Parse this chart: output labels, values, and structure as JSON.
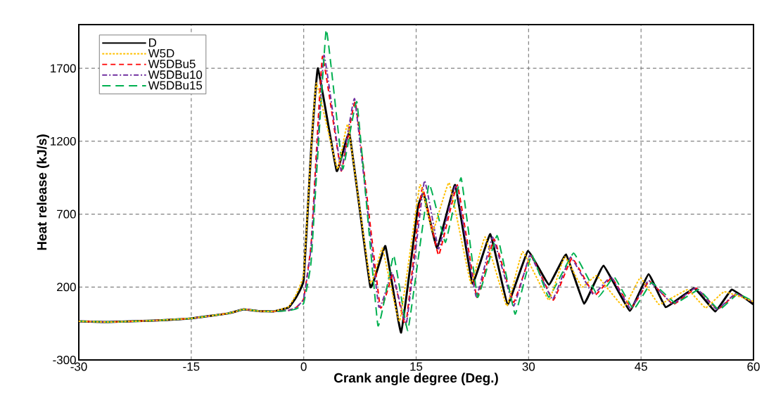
{
  "chart_data": {
    "type": "line",
    "xlabel": "Crank angle degree (Deg.)",
    "ylabel": "Heat release (kJ/s)",
    "xlim": [
      -30,
      60
    ],
    "xticks": [
      -30,
      -15,
      0,
      15,
      30,
      45,
      60
    ],
    "ylim": [
      -300,
      2000
    ],
    "yticks": [
      -300,
      200,
      700,
      1200,
      1700
    ],
    "grid": true,
    "legend": "top left",
    "marker": "none",
    "series": [
      {
        "name": "D",
        "color": "#000000",
        "line_style": "solid",
        "x": [
          -30,
          -26,
          -20,
          -15,
          -10,
          -8,
          -6,
          -4,
          -2,
          -1,
          0,
          1,
          1.9,
          4.4,
          6.1,
          8.9,
          10.9,
          13,
          15.2,
          16,
          17.8,
          20.2,
          22.5,
          24.9,
          27.2,
          29.9,
          32.7,
          35,
          37.4,
          40,
          43.5,
          46,
          48.3,
          52.1,
          54.9,
          57.1,
          60
        ],
        "values": [
          -35,
          -40,
          -30,
          -15,
          20,
          47,
          35,
          33,
          60,
          130,
          250,
          1150,
          1700,
          996,
          1252,
          200,
          481,
          -112,
          737,
          842,
          466,
          900,
          225,
          563,
          81,
          447,
          216,
          423,
          86,
          346,
          37,
          288,
          62,
          192,
          33,
          182,
          81
        ]
      },
      {
        "name": "W5D",
        "color": "#ffc000",
        "line_style": "dotted",
        "x": [
          -30,
          -26,
          -20,
          -15,
          -10,
          -8,
          -6,
          -4,
          -2,
          -1,
          0,
          1,
          1.7,
          4.5,
          5.9,
          8.9,
          10.5,
          12.8,
          15.5,
          17.2,
          19.4,
          22.3,
          24.2,
          27.1,
          29.2,
          32.7,
          34.8,
          37.1,
          39.1,
          42.7,
          44.9,
          47.4,
          51.2,
          53.6,
          56.1,
          60
        ],
        "values": [
          -35,
          -40,
          -30,
          -15,
          20,
          47,
          35,
          33,
          65,
          150,
          290,
          1150,
          1599,
          1010,
          1314,
          230,
          466,
          -35,
          900,
          577,
          915,
          225,
          543,
          70,
          442,
          110,
          408,
          200,
          278,
          62,
          264,
          81,
          182,
          57,
          168,
          100
        ]
      },
      {
        "name": "W5DBu5",
        "color": "#ff0000",
        "line_style": "dashed",
        "x": [
          -30,
          -26,
          -20,
          -15,
          -10,
          -8,
          -6,
          -4,
          -2,
          -1,
          0,
          1,
          2.5,
          5,
          6.9,
          10.2,
          11.9,
          13.6,
          15.8,
          18,
          20.5,
          23.1,
          25.4,
          28,
          30.3,
          33.3,
          35.8,
          38.8,
          41.1,
          43.7,
          46.1,
          49.3,
          52.4,
          55.2,
          57.7,
          60
        ],
        "values": [
          -35,
          -40,
          -30,
          -15,
          20,
          47,
          35,
          33,
          40,
          60,
          120,
          500,
          1782,
          996,
          1469,
          62,
          288,
          -64,
          881,
          418,
          900,
          129,
          529,
          95,
          418,
          110,
          399,
          143,
          264,
          57,
          240,
          81,
          192,
          47,
          153,
          95
        ]
      },
      {
        "name": "W5DBu10",
        "color": "#7030a0",
        "line_style": "dashdot",
        "x": [
          -30,
          -26,
          -20,
          -15,
          -10,
          -8,
          -6,
          -4,
          -2,
          -1,
          0,
          1,
          2.7,
          5,
          6.8,
          10,
          11.8,
          13.7,
          16.1,
          18,
          20.3,
          23,
          25.2,
          28,
          30.2,
          33.2,
          35.6,
          38.6,
          41,
          43.6,
          46,
          49.2,
          52.3,
          55.1,
          57.6,
          60
        ],
        "values": [
          -35,
          -40,
          -30,
          -15,
          20,
          47,
          35,
          33,
          40,
          60,
          120,
          480,
          1790,
          1000,
          1490,
          67,
          300,
          -50,
          929,
          460,
          900,
          135,
          543,
          70,
          418,
          115,
          405,
          150,
          270,
          52,
          245,
          85,
          195,
          45,
          155,
          95
        ]
      },
      {
        "name": "W5DBu15",
        "color": "#00b050",
        "line_style": "longdashed",
        "x": [
          -30,
          -26,
          -20,
          -15,
          -10,
          -8,
          -6,
          -4,
          -2,
          -1,
          0,
          1,
          3,
          5.2,
          7.1,
          9.9,
          12,
          13.9,
          16.7,
          18.9,
          21,
          23.2,
          25.8,
          28.2,
          30.4,
          32.7,
          36,
          39.3,
          41.4,
          44,
          46.4,
          49.6,
          52.7,
          55.4,
          57.9,
          60
        ],
        "values": [
          -35,
          -40,
          -30,
          -15,
          20,
          47,
          35,
          33,
          38,
          50,
          90,
          380,
          1965,
          1010,
          1469,
          -64,
          418,
          -98,
          905,
          505,
          948,
          130,
          553,
          14,
          423,
          130,
          433,
          134,
          270,
          47,
          230,
          90,
          182,
          43,
          153,
          100
        ]
      }
    ]
  }
}
